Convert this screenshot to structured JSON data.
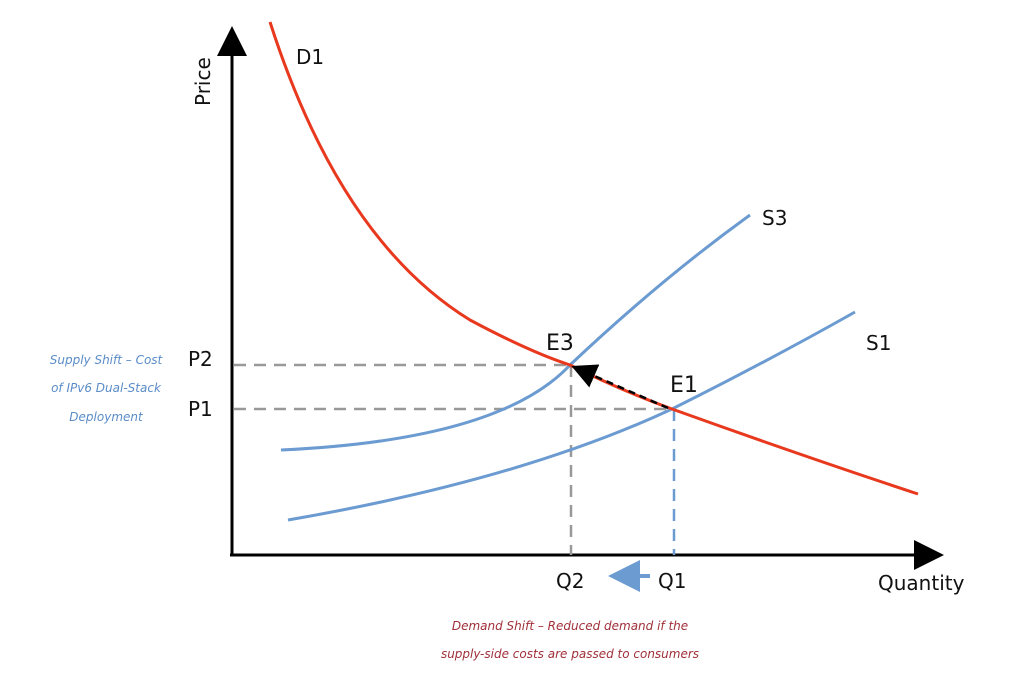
{
  "axes": {
    "y_label": "Price",
    "x_label": "Quantity"
  },
  "curves": {
    "demand": "D1",
    "supply_original": "S1",
    "supply_shifted": "S3"
  },
  "points": {
    "e1": "E1",
    "e3": "E3"
  },
  "prices": {
    "p1": "P1",
    "p2": "P2"
  },
  "quantities": {
    "q1": "Q1",
    "q2": "Q2"
  },
  "annotations": {
    "supply_shift": [
      "Supply Shift – Cost",
      "of IPv6 Dual-Stack",
      "Deployment"
    ],
    "demand_shift": [
      "Demand Shift – Reduced demand if the",
      "supply-side costs are passed to consumers"
    ]
  },
  "colors": {
    "demand": "#e8391e",
    "supply": "#6b9bd1",
    "guide": "#999999",
    "supply_note": "#5a8cc8",
    "demand_note": "#a0303a"
  }
}
